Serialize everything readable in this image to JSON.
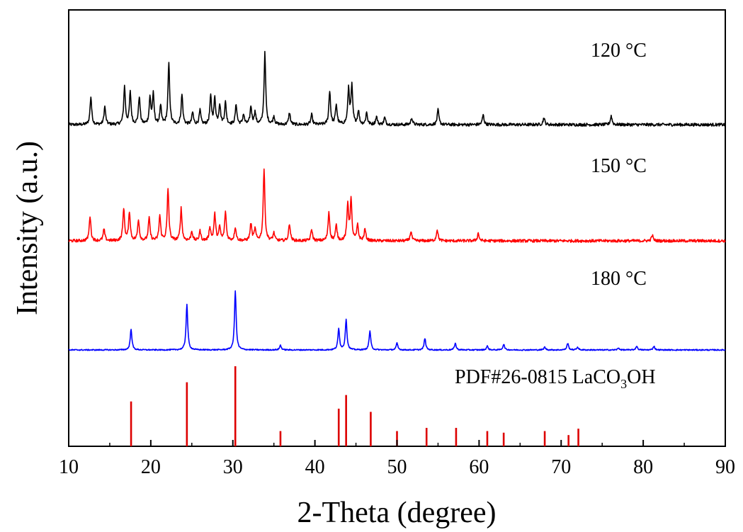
{
  "chart_data": {
    "type": "line",
    "xlabel": "2-Theta (degree)",
    "ylabel": "Intensity (a.u.)",
    "xlim": [
      10,
      90
    ],
    "x_ticks": [
      "10",
      "20",
      "30",
      "40",
      "50",
      "60",
      "70",
      "80",
      "90"
    ],
    "y_ticks_shown": false,
    "grid": false,
    "series": [
      {
        "name": "120 °C",
        "color": "#000000",
        "baseline": 0.0,
        "peaks": [
          [
            12.7,
            0.28
          ],
          [
            14.4,
            0.18
          ],
          [
            16.8,
            0.38
          ],
          [
            17.5,
            0.32
          ],
          [
            18.6,
            0.28
          ],
          [
            19.9,
            0.26
          ],
          [
            20.3,
            0.3
          ],
          [
            21.2,
            0.18
          ],
          [
            22.2,
            0.62
          ],
          [
            23.8,
            0.3
          ],
          [
            25.1,
            0.12
          ],
          [
            26.0,
            0.14
          ],
          [
            27.3,
            0.28
          ],
          [
            27.8,
            0.26
          ],
          [
            28.4,
            0.2
          ],
          [
            29.1,
            0.22
          ],
          [
            30.4,
            0.2
          ],
          [
            31.3,
            0.1
          ],
          [
            32.2,
            0.18
          ],
          [
            32.7,
            0.12
          ],
          [
            33.9,
            0.72
          ],
          [
            35.0,
            0.08
          ],
          [
            36.9,
            0.12
          ],
          [
            39.6,
            0.1
          ],
          [
            41.8,
            0.34
          ],
          [
            42.6,
            0.2
          ],
          [
            44.1,
            0.36
          ],
          [
            44.5,
            0.38
          ],
          [
            45.3,
            0.14
          ],
          [
            46.3,
            0.12
          ],
          [
            47.5,
            0.08
          ],
          [
            48.5,
            0.07
          ],
          [
            51.8,
            0.07
          ],
          [
            55.0,
            0.15
          ],
          [
            60.5,
            0.1
          ],
          [
            67.9,
            0.07
          ],
          [
            76.1,
            0.09
          ]
        ]
      },
      {
        "name": "150 °C",
        "color": "#ff0000",
        "baseline": 0.0,
        "peaks": [
          [
            12.6,
            0.26
          ],
          [
            14.3,
            0.12
          ],
          [
            16.7,
            0.34
          ],
          [
            17.4,
            0.3
          ],
          [
            18.5,
            0.22
          ],
          [
            19.8,
            0.24
          ],
          [
            21.1,
            0.26
          ],
          [
            22.1,
            0.54
          ],
          [
            23.7,
            0.34
          ],
          [
            25.0,
            0.1
          ],
          [
            26.0,
            0.1
          ],
          [
            27.2,
            0.14
          ],
          [
            27.8,
            0.28
          ],
          [
            28.4,
            0.14
          ],
          [
            29.1,
            0.3
          ],
          [
            30.3,
            0.14
          ],
          [
            32.2,
            0.18
          ],
          [
            32.7,
            0.12
          ],
          [
            33.8,
            0.75
          ],
          [
            35.0,
            0.08
          ],
          [
            36.9,
            0.18
          ],
          [
            39.6,
            0.12
          ],
          [
            41.7,
            0.3
          ],
          [
            42.6,
            0.16
          ],
          [
            44.0,
            0.38
          ],
          [
            44.4,
            0.42
          ],
          [
            45.2,
            0.16
          ],
          [
            46.1,
            0.12
          ],
          [
            51.7,
            0.1
          ],
          [
            54.9,
            0.12
          ],
          [
            59.9,
            0.08
          ],
          [
            81.1,
            0.06
          ]
        ]
      },
      {
        "name": "180 °C",
        "color": "#0000ff",
        "baseline": 0.0,
        "peaks": [
          [
            17.6,
            0.22
          ],
          [
            24.4,
            0.48
          ],
          [
            30.3,
            0.62
          ],
          [
            35.8,
            0.05
          ],
          [
            42.9,
            0.22
          ],
          [
            43.8,
            0.32
          ],
          [
            46.7,
            0.2
          ],
          [
            50.0,
            0.07
          ],
          [
            53.4,
            0.12
          ],
          [
            57.1,
            0.07
          ],
          [
            61.0,
            0.04
          ],
          [
            63.0,
            0.06
          ],
          [
            68.0,
            0.03
          ],
          [
            70.8,
            0.07
          ],
          [
            72.0,
            0.03
          ],
          [
            77.0,
            0.02
          ],
          [
            79.2,
            0.04
          ],
          [
            81.3,
            0.04
          ]
        ]
      },
      {
        "name": "PDF#26-0815  LaCO3OH",
        "type": "stick",
        "color": "#dd0000",
        "x": [
          17.6,
          24.4,
          30.3,
          35.8,
          42.9,
          43.8,
          46.8,
          50.0,
          53.6,
          57.2,
          61.0,
          63.0,
          68.0,
          70.9,
          72.1
        ],
        "values": [
          0.56,
          0.8,
          1.0,
          0.19,
          0.47,
          0.64,
          0.43,
          0.19,
          0.23,
          0.23,
          0.19,
          0.17,
          0.19,
          0.14,
          0.22
        ]
      }
    ],
    "annotations": [
      {
        "text": "120 °C",
        "series": 0
      },
      {
        "text": "150 °C",
        "series": 1
      },
      {
        "text": "180 °C",
        "series": 2
      },
      {
        "text_main": "PDF#26-0815  LaCO",
        "text_sub": "3",
        "text_end": "OH",
        "series": 3
      }
    ]
  }
}
